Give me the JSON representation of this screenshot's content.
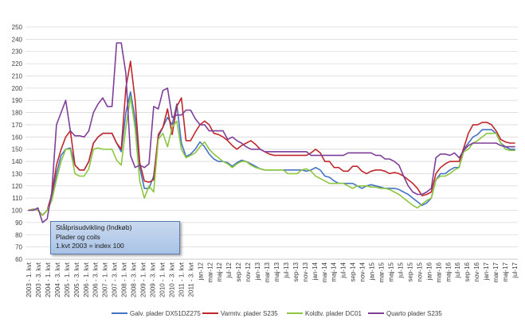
{
  "chart_data": {
    "type": "line",
    "title": "",
    "xlabel": "",
    "ylabel": "",
    "ylim": [
      60,
      250
    ],
    "ytick_step": 10,
    "grid": "horizontal",
    "legend_position": "bottom",
    "annotation": {
      "lines": [
        "Stålprisudvikling (Indkøb)",
        "Plader og coils",
        "1.kvt 2003 = index 100"
      ]
    },
    "x_tick_labels": [
      "2003 - 1. kvt",
      "2003 - 3. kvt",
      "2004 - 1. kvt",
      "2004 - 3. kvt",
      "2005 - 1. kvt",
      "2005 - 3. kvt",
      "2006 - 1. kvt",
      "2006 - 3. kvt",
      "2007 - 1. kvt",
      "2007 - 3. kvt",
      "2008 - 1. kvt",
      "2008 - 3. kvt",
      "2009 - 1. kvt",
      "2009 - 3. kvt",
      "2010 - 1. kvt",
      "2010 - 3. kvt",
      "2011 - 1. kvt",
      "2011 - 3. kvt",
      "jan-12",
      "mar-12",
      "maj-12",
      "jul-12",
      "sep-12",
      "nov-12",
      "jan-13",
      "mar-13",
      "maj-13",
      "jul-13",
      "sep-13",
      "nov-13",
      "jan-14",
      "mar-14",
      "maj-14",
      "jul-14",
      "sep-14",
      "nov-14",
      "jan-15",
      "mar-15",
      "maj-15",
      "jul-15",
      "sep-15",
      "nov-15",
      "jan-16",
      "mar-16",
      "maj-16",
      "jul-16",
      "sep-16",
      "nov-16",
      "jan-17",
      "mar-17",
      "maj-17",
      "jul-17"
    ],
    "series": [
      {
        "name": "Galv. plader DX51DZ275",
        "color": "#4472c4",
        "values": [
          100,
          101,
          100,
          96,
          100,
          110,
          130,
          145,
          150,
          151,
          137,
          133,
          133,
          140,
          155,
          160,
          163,
          163,
          163,
          155,
          148,
          180,
          197,
          175,
          135,
          118,
          118,
          128,
          160,
          168,
          176,
          170,
          187,
          155,
          144,
          146,
          150,
          156,
          152,
          146,
          142,
          140,
          140,
          139,
          136,
          139,
          141,
          140,
          138,
          136,
          134,
          133,
          133,
          133,
          133,
          133,
          133,
          133,
          133,
          133,
          132,
          133,
          135,
          133,
          128,
          127,
          124,
          122,
          122,
          122,
          122,
          120,
          118,
          120,
          121,
          120,
          119,
          118,
          118,
          118,
          117,
          115,
          113,
          110,
          107,
          104,
          106,
          110,
          125,
          130,
          130,
          133,
          135,
          135,
          150,
          155,
          160,
          162,
          166,
          166,
          166,
          163,
          155,
          152,
          150,
          150
        ]
      },
      {
        "name": "Varmtv. plader S235",
        "color": "#c0272d",
        "values": [
          100,
          101,
          100,
          96,
          100,
          113,
          137,
          150,
          160,
          165,
          137,
          133,
          133,
          140,
          155,
          160,
          163,
          163,
          163,
          155,
          150,
          200,
          222,
          190,
          139,
          124,
          123,
          125,
          162,
          168,
          183,
          162,
          185,
          192,
          157,
          157,
          164,
          170,
          173,
          170,
          163,
          162,
          160,
          157,
          153,
          150,
          153,
          155,
          157,
          154,
          150,
          148,
          146,
          145,
          145,
          145,
          145,
          145,
          145,
          145,
          145,
          147,
          150,
          147,
          140,
          140,
          135,
          135,
          132,
          132,
          136,
          136,
          132,
          130,
          132,
          133,
          133,
          132,
          130,
          131,
          130,
          128,
          125,
          122,
          118,
          112,
          113,
          115,
          130,
          135,
          138,
          140,
          140,
          140,
          151,
          163,
          170,
          170,
          172,
          172,
          170,
          165,
          158,
          156,
          155,
          155
        ]
      },
      {
        "name": "Koldtv. plader DC01",
        "color": "#8dc63f",
        "values": [
          100,
          101,
          100,
          96,
          100,
          108,
          125,
          140,
          150,
          150,
          130,
          128,
          128,
          134,
          150,
          151,
          150,
          150,
          150,
          141,
          137,
          168,
          193,
          167,
          124,
          110,
          120,
          115,
          158,
          163,
          152,
          168,
          173,
          150,
          143,
          145,
          147,
          152,
          156,
          150,
          146,
          143,
          140,
          138,
          135,
          138,
          140,
          140,
          137,
          135,
          134,
          133,
          133,
          133,
          133,
          133,
          130,
          130,
          130,
          133,
          134,
          132,
          128,
          126,
          124,
          122,
          122,
          122,
          122,
          120,
          118,
          120,
          120,
          120,
          119,
          119,
          118,
          118,
          117,
          115,
          113,
          110,
          107,
          104,
          102,
          105,
          108,
          110,
          125,
          128,
          128,
          130,
          133,
          135,
          148,
          150,
          155,
          157,
          160,
          163,
          163,
          163,
          155,
          150,
          149,
          149
        ]
      },
      {
        "name": "Quarto plader S235",
        "color": "#7f3f98",
        "values": [
          100,
          100,
          102,
          90,
          93,
          115,
          170,
          180,
          190,
          165,
          161,
          161,
          160,
          165,
          180,
          187,
          192,
          185,
          185,
          237,
          237,
          212,
          145,
          135,
          137,
          135,
          138,
          185,
          183,
          198,
          200,
          176,
          178,
          178,
          182,
          182,
          175,
          170,
          170,
          165,
          165,
          165,
          165,
          158,
          160,
          157,
          155,
          152,
          150,
          150,
          150,
          148,
          148,
          148,
          148,
          148,
          148,
          148,
          148,
          148,
          148,
          145,
          145,
          145,
          145,
          145,
          145,
          145,
          145,
          147,
          147,
          147,
          147,
          147,
          147,
          145,
          145,
          142,
          142,
          140,
          137,
          128,
          120,
          115,
          113,
          113,
          115,
          118,
          143,
          146,
          146,
          145,
          147,
          143,
          149,
          153,
          155,
          155,
          155,
          155,
          155,
          155,
          153,
          152,
          152,
          152
        ]
      }
    ]
  }
}
